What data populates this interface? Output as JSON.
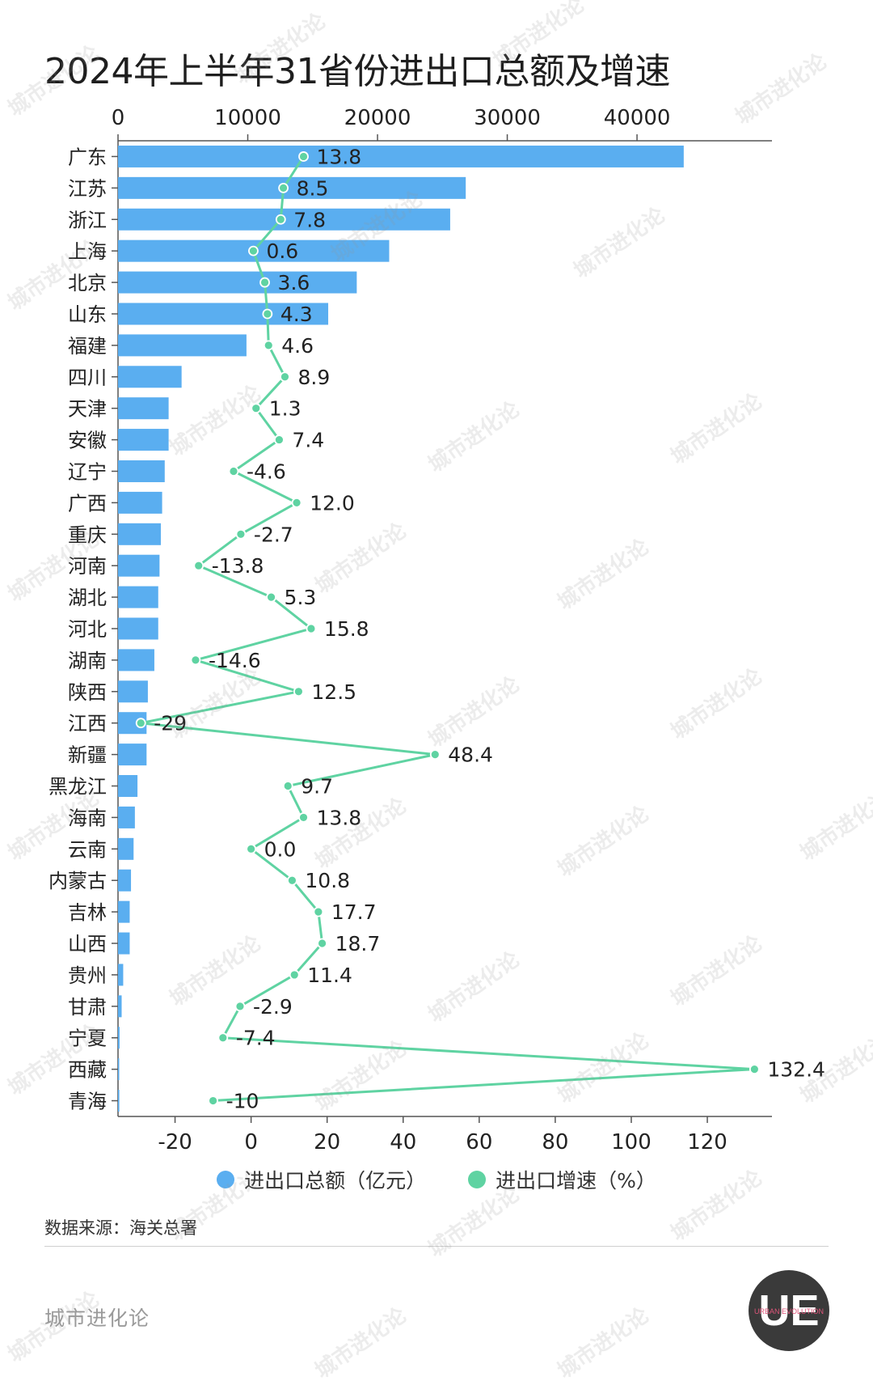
{
  "header": {
    "title": "2024年上半年31省份进出口总额及增速"
  },
  "chart_data": {
    "type": "bar",
    "orientation": "horizontal",
    "categories": [
      "广东",
      "江苏",
      "浙江",
      "上海",
      "北京",
      "山东",
      "福建",
      "四川",
      "天津",
      "安徽",
      "辽宁",
      "广西",
      "重庆",
      "河南",
      "湖北",
      "河北",
      "湖南",
      "陕西",
      "江西",
      "新疆",
      "黑龙江",
      "海南",
      "云南",
      "内蒙古",
      "吉林",
      "山西",
      "贵州",
      "甘肃",
      "宁夏",
      "西藏",
      "青海"
    ],
    "series": [
      {
        "name": "进出口总额（亿元）",
        "type": "bar",
        "axis": "top",
        "color": "#5aaef0",
        "values": [
          43600,
          26800,
          25600,
          20900,
          18400,
          16200,
          9900,
          4900,
          3900,
          3900,
          3600,
          3400,
          3300,
          3200,
          3100,
          3100,
          2800,
          2300,
          2200,
          2200,
          1500,
          1300,
          1200,
          1000,
          900,
          900,
          400,
          280,
          120,
          40,
          100
        ]
      },
      {
        "name": "进出口增速（%）",
        "type": "line",
        "axis": "bottom",
        "color": "#5fd3a2",
        "values": [
          13.8,
          8.5,
          7.8,
          0.6,
          3.6,
          4.3,
          4.6,
          8.9,
          1.3,
          7.4,
          -4.6,
          12.0,
          -2.7,
          -13.8,
          5.3,
          15.8,
          -14.6,
          12.5,
          -29,
          48.4,
          9.7,
          13.8,
          0.0,
          10.8,
          17.7,
          18.7,
          11.4,
          -2.9,
          -7.4,
          132.4,
          -10
        ],
        "labels": [
          "13.8",
          "8.5",
          "7.8",
          "0.6",
          "3.6",
          "4.3",
          "4.6",
          "8.9",
          "1.3",
          "7.4",
          "-4.6",
          "12.0",
          "-2.7",
          "-13.8",
          "5.3",
          "15.8",
          "-14.6",
          "12.5",
          "-29",
          "48.4",
          "9.7",
          "13.8",
          "0.0",
          "10.8",
          "17.7",
          "18.7",
          "11.4",
          "-2.9",
          "-7.4",
          "132.4",
          "-10"
        ]
      }
    ],
    "top_axis": {
      "ticks": [
        0,
        10000,
        20000,
        30000,
        40000
      ],
      "tick_labels": [
        "0",
        "10000",
        "20000",
        "30000",
        "40000"
      ]
    },
    "bottom_axis": {
      "ticks": [
        -20,
        0,
        20,
        40,
        60,
        80,
        100,
        120
      ],
      "tick_labels": [
        "-20",
        "0",
        "20",
        "40",
        "60",
        "80",
        "100",
        "120"
      ]
    },
    "legend_position": "bottom-center",
    "grid": false
  },
  "legend": {
    "items": [
      {
        "label": "进出口总额（亿元）",
        "color": "#5aaef0"
      },
      {
        "label": "进出口增速（%）",
        "color": "#5fd3a2"
      }
    ]
  },
  "footer": {
    "source": "数据来源：海关总署",
    "brand": "城市进化论",
    "logo_text": "UE",
    "logo_subtext": "URBAN EVOLUTION"
  },
  "watermark": {
    "text": "城市进化论",
    "subtext": "URBAN EVOLUTION"
  }
}
